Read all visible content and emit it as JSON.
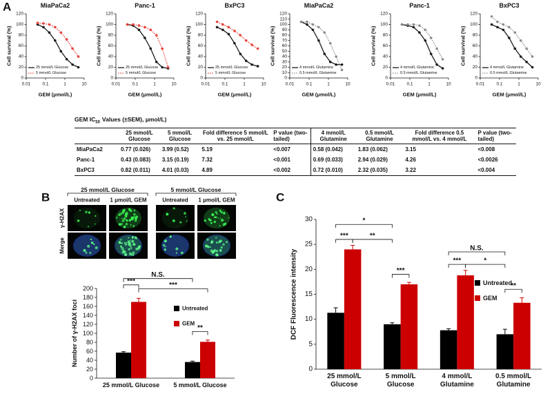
{
  "panel_labels": [
    "A",
    "B",
    "C"
  ],
  "chart_data": [
    {
      "type": "line",
      "title": "MiaPaCa2",
      "x_label": "GEM (μmol/L)",
      "y_label": "Cell survival (%)",
      "log_x": true,
      "xlim": [
        0.01,
        10
      ],
      "xticks": [
        0.01,
        0.1,
        1,
        10
      ],
      "ylim": [
        0,
        120
      ],
      "yticks": [
        0,
        20,
        40,
        60,
        80,
        100,
        120
      ],
      "x": [
        0.039,
        0.078,
        0.156,
        0.3125,
        0.625,
        1.25,
        2.5,
        5
      ],
      "legend": "lower left",
      "series": [
        {
          "name": "25 mmol/L Glucose",
          "color": "#1a1a1a",
          "line_style": "solid",
          "values": [
            100,
            95,
            85,
            70,
            50,
            35,
            25,
            20
          ]
        },
        {
          "name": "5 mmol/L Glucose",
          "color": "#e8403a",
          "line_style": "dotted",
          "values": [
            103,
            102,
            100,
            95,
            85,
            72,
            55,
            40
          ]
        }
      ]
    },
    {
      "type": "line",
      "title": "Panc-1",
      "x_label": "GEM (μmol/L)",
      "y_label": "Cell survival (%)",
      "log_x": true,
      "xlim": [
        0.01,
        10
      ],
      "xticks": [
        0.01,
        0.1,
        1,
        10
      ],
      "ylim": [
        0,
        120
      ],
      "yticks": [
        0,
        20,
        40,
        60,
        80,
        100,
        120
      ],
      "x": [
        0.039,
        0.078,
        0.156,
        0.3125,
        0.625,
        1.25,
        2.5,
        5
      ],
      "legend": "lower left",
      "series": [
        {
          "name": "25 mmol/L Glucose",
          "color": "#1a1a1a",
          "line_style": "solid",
          "values": [
            100,
            98,
            90,
            75,
            55,
            30,
            20,
            18
          ]
        },
        {
          "name": "5 mmol/L Glucose",
          "color": "#e8403a",
          "line_style": "dotted",
          "values": [
            100,
            100,
            98,
            95,
            90,
            80,
            55,
            20
          ]
        }
      ]
    },
    {
      "type": "line",
      "title": "BxPC3",
      "x_label": "GEM (μmol/L)",
      "y_label": "Cell survival (%)",
      "log_x": true,
      "xlim": [
        0.01,
        10
      ],
      "xticks": [
        0.01,
        0.1,
        1,
        10
      ],
      "ylim": [
        0,
        120
      ],
      "yticks": [
        0,
        20,
        40,
        60,
        80,
        100,
        120
      ],
      "x": [
        0.039,
        0.078,
        0.156,
        0.3125,
        0.625,
        1.25,
        2.5,
        5
      ],
      "legend": "lower left",
      "series": [
        {
          "name": "25 mmol/L Glucose",
          "color": "#1a1a1a",
          "line_style": "solid",
          "values": [
            95,
            90,
            82,
            65,
            45,
            32,
            25,
            22
          ]
        },
        {
          "name": "5 mmol/L Glucose",
          "color": "#e8403a",
          "line_style": "dotted",
          "values": [
            105,
            100,
            95,
            88,
            80,
            70,
            62,
            55
          ]
        }
      ]
    },
    {
      "type": "line",
      "title": "MiaPaCa2",
      "x_label": "GEM (μmol/L)",
      "y_label": "Cell survival (%)",
      "log_x": true,
      "xlim": [
        0.01,
        10
      ],
      "xticks": [
        0.01,
        0.1,
        1,
        10
      ],
      "ylim": [
        0,
        120
      ],
      "yticks": [
        0,
        10,
        20,
        30,
        40,
        50,
        60,
        70,
        80,
        90,
        100,
        110,
        120
      ],
      "x": [
        0.039,
        0.078,
        0.156,
        0.3125,
        0.625,
        1.25,
        2.5,
        5
      ],
      "legend": "lower left",
      "series": [
        {
          "name": "4 mmol/L Glutamine",
          "color": "#1a1a1a",
          "line_style": "solid",
          "values": [
            105,
            100,
            90,
            70,
            45,
            30,
            25,
            25
          ]
        },
        {
          "name": "0.5 mmol/L Glutamine",
          "color": "#8c8c8c",
          "line_style": "dotted",
          "values": [
            105,
            105,
            100,
            95,
            85,
            65,
            40,
            15
          ]
        }
      ]
    },
    {
      "type": "line",
      "title": "Panc-1",
      "x_label": "GEM (μmol/L)",
      "y_label": "Cell survival (%)",
      "log_x": true,
      "xlim": [
        0.01,
        10
      ],
      "xticks": [
        0.01,
        0.1,
        1,
        10
      ],
      "ylim": [
        0,
        120
      ],
      "yticks": [
        0,
        20,
        40,
        60,
        80,
        100,
        120
      ],
      "x": [
        0.039,
        0.078,
        0.156,
        0.3125,
        0.625,
        1.25,
        2.5,
        5
      ],
      "legend": "lower left",
      "series": [
        {
          "name": "4 mmol/L Glutamine",
          "color": "#1a1a1a",
          "line_style": "solid",
          "values": [
            100,
            98,
            95,
            85,
            70,
            45,
            25,
            18
          ]
        },
        {
          "name": "0.5 mmol/L Glutamine",
          "color": "#8c8c8c",
          "line_style": "dotted",
          "values": [
            100,
            100,
            100,
            98,
            90,
            75,
            55,
            35
          ]
        }
      ]
    },
    {
      "type": "line",
      "title": "BxPC3",
      "x_label": "GEM (μmol/L)",
      "y_label": "Cell survival (%)",
      "log_x": true,
      "xlim": [
        0.01,
        10
      ],
      "xticks": [
        0.01,
        0.1,
        1,
        10
      ],
      "ylim": [
        0,
        120
      ],
      "yticks": [
        0,
        20,
        40,
        60,
        80,
        100,
        120
      ],
      "x": [
        0.039,
        0.078,
        0.156,
        0.3125,
        0.625,
        1.25,
        2.5,
        5
      ],
      "legend": "lower left",
      "series": [
        {
          "name": "4 mmol/L Glutamine",
          "color": "#1a1a1a",
          "line_style": "solid",
          "values": [
            100,
            95,
            90,
            75,
            55,
            40,
            30,
            20
          ]
        },
        {
          "name": "0.5 mmol/L Glutamine",
          "color": "#8c8c8c",
          "line_style": "dotted",
          "values": [
            115,
            105,
            100,
            95,
            85,
            70,
            55,
            40
          ]
        }
      ]
    },
    {
      "type": "bar",
      "y_label": "Number of γ-H2AX foci",
      "categories": [
        "25 mmol/L Glucose",
        "5 mmol/L Glucose"
      ],
      "ylim": [
        0,
        200
      ],
      "yticks": [
        0,
        20,
        40,
        60,
        80,
        100,
        120,
        140,
        160,
        180,
        200
      ],
      "legend": "right",
      "series": [
        {
          "name": "Untreated",
          "color": "#000000",
          "values": [
            57,
            36
          ],
          "errors": [
            2,
            2
          ]
        },
        {
          "name": "GEM",
          "color": "#cc0000",
          "values": [
            170,
            81
          ],
          "errors": [
            8,
            4
          ]
        }
      ],
      "annotations": [
        "N.S.",
        "***",
        "***",
        "**"
      ]
    },
    {
      "type": "bar",
      "y_label": "DCF Fluorescence intensity",
      "categories": [
        "25 mmol/L Glucose",
        "5 mmol/L Glucose",
        "4 mmol/L Glutamine",
        "0.5 mmol/L Glutamine"
      ],
      "ylim": [
        0,
        30
      ],
      "yticks": [
        0,
        5,
        10,
        15,
        20,
        25,
        30
      ],
      "legend": "right",
      "series": [
        {
          "name": "Untreated",
          "color": "#000000",
          "values": [
            11.3,
            9.0,
            7.8,
            7.0
          ],
          "errors": [
            1.0,
            0.3,
            0.3,
            1.0
          ]
        },
        {
          "name": "GEM",
          "color": "#cc0000",
          "values": [
            24,
            17,
            18.8,
            13.3
          ],
          "errors": [
            0.8,
            0.4,
            1.0,
            1.0
          ]
        }
      ],
      "annotations": [
        "*",
        "***",
        "**",
        "***",
        "N.S.",
        "***",
        "*",
        "**"
      ]
    }
  ],
  "table": {
    "title": "GEM IC",
    "title_sub": "50",
    "title_rest": "Values (±SEM), μmol/L)",
    "header": [
      "25 mmol/L Glucose",
      "5 mmol/L Glucose",
      "Fold difference 5 mmol/L vs. 25 mmol/L",
      "P value (two-tailed)",
      "4 mmol/L Glutamine",
      "0.5 mmol/L Glutamine",
      "Fold difference 0.5 mmol/L vs. 4 mmol/L",
      "P value (two-tailed)"
    ],
    "rows": [
      [
        "MiaPaCa2",
        "0.77 (0.026)",
        "3.99 (0.52)",
        "5.19",
        "<0.007",
        "0.58 (0.042)",
        "1.83 (0.062)",
        "3.15",
        "<0.008"
      ],
      [
        "Panc-1",
        "0.43 (0.083)",
        "3.15 (0.19)",
        "7.32",
        "<0.001",
        "0.69 (0.033)",
        "2.94 (0.029)",
        "4.26",
        "<0.0026"
      ],
      [
        "BxPC3",
        "0.82 (0.011)",
        "4.01 (0.03)",
        "4.89",
        "<0.002",
        "0.72 (0.010)",
        "2.32 (0.035)",
        "3.22",
        "<0.004"
      ]
    ]
  },
  "micrographs": {
    "groups": [
      "25 mmol/L Glucose",
      "5 mmol/L Glucose"
    ],
    "columns": [
      "Untreated",
      "1 μmol/L GEM",
      "Untreated",
      "1 μmol/L GEM"
    ],
    "rows": [
      "γ-H2AX",
      "Merge"
    ]
  }
}
